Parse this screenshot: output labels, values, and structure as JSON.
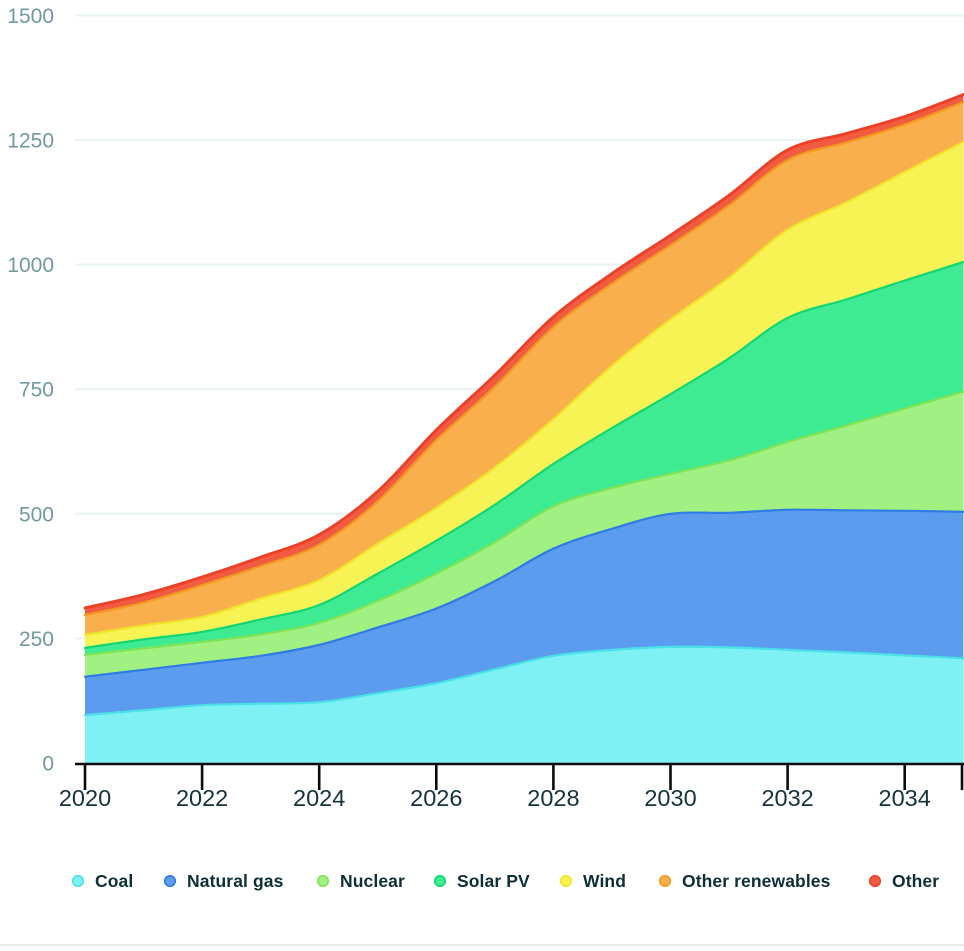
{
  "chart_data": {
    "type": "area",
    "stacked": true,
    "title": "",
    "xlabel": "",
    "ylabel": "",
    "x": [
      2020,
      2021,
      2022,
      2023,
      2024,
      2025,
      2026,
      2027,
      2028,
      2029,
      2030,
      2031,
      2032,
      2033,
      2034,
      2035
    ],
    "x_tick_labels": [
      "2020",
      "2022",
      "2024",
      "2026",
      "2028",
      "2030",
      "2032",
      "2034"
    ],
    "x_tick_years": [
      2020,
      2022,
      2024,
      2026,
      2028,
      2030,
      2032,
      2034
    ],
    "ylim": [
      0,
      1500
    ],
    "y_ticks": [
      0,
      250,
      500,
      750,
      1000,
      1250,
      1500
    ],
    "y_tick_labels": [
      "0",
      "250",
      "500",
      "750",
      "1000",
      "1250",
      "1500"
    ],
    "grid": true,
    "legend_position": "bottom",
    "series": [
      {
        "name": "Coal",
        "color": "#7ef1f4",
        "stroke": "#49e0e8",
        "values": [
          96,
          106,
          116,
          119,
          122,
          140,
          160,
          188,
          215,
          227,
          233,
          232,
          227,
          222,
          216,
          210
        ]
      },
      {
        "name": "Natural gas",
        "color": "#5c9cef",
        "stroke": "#2e7ce4",
        "values": [
          77,
          81,
          85,
          96,
          115,
          132,
          150,
          177,
          215,
          243,
          267,
          270,
          281,
          285,
          290,
          294
        ]
      },
      {
        "name": "Nuclear",
        "color": "#a0f181",
        "stroke": "#7fe455",
        "values": [
          44,
          43,
          42,
          43,
          44,
          53,
          70,
          78,
          85,
          82,
          80,
          105,
          136,
          170,
          205,
          241
        ]
      },
      {
        "name": "Solar PV",
        "color": "#3feb92",
        "stroke": "#12d573",
        "values": [
          14,
          18,
          20,
          30,
          36,
          55,
          66,
          75,
          85,
          120,
          160,
          205,
          249,
          253,
          257,
          260
        ]
      },
      {
        "name": "Wind",
        "color": "#f8f355",
        "stroke": "#efe428",
        "values": [
          26,
          28,
          30,
          42,
          50,
          60,
          66,
          75,
          90,
          125,
          150,
          162,
          177,
          195,
          218,
          241
        ]
      },
      {
        "name": "Other renewables",
        "color": "#f9af4c",
        "stroke": "#f2991f",
        "values": [
          40,
          46,
          64,
          65,
          71,
          85,
          136,
          162,
          185,
          165,
          149,
          145,
          140,
          120,
          95,
          80
        ]
      },
      {
        "name": "Other",
        "color": "#f15b42",
        "stroke": "#ec4128",
        "values": [
          14,
          16,
          16,
          18,
          20,
          20,
          20,
          23,
          20,
          20,
          20,
          20,
          20,
          18,
          16,
          15
        ]
      }
    ]
  },
  "axis_style": {
    "y_label_color": "#6f9aa0",
    "x_label_color": "#14333c",
    "axis_color": "#0b0b0b",
    "grid_color": "#e9f4f2"
  },
  "legend_layout": {
    "dot_x": [
      78,
      170,
      323,
      440,
      566,
      665,
      875
    ]
  }
}
